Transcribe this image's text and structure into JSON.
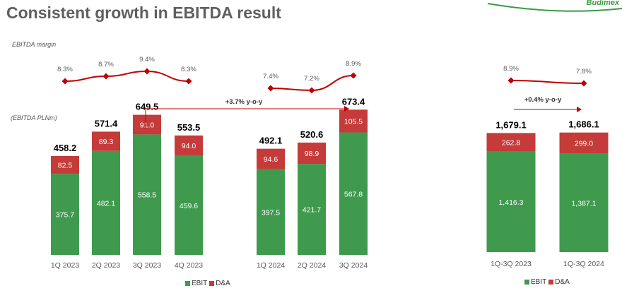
{
  "page": {
    "title": "Consistent growth in EBITDA result",
    "logo_text": "Budimex",
    "margin_label": "EBITDA margin",
    "value_label": "(EBITDA PLNm)"
  },
  "colors": {
    "ebit": "#3f9a4e",
    "da": "#c43b39",
    "margin_line": "#c00000",
    "arrow": "#c00000",
    "axis_text": "#595959"
  },
  "chart_data": [
    {
      "type": "bar",
      "stacked": true,
      "categories": [
        "1Q 2023",
        "2Q 2023",
        "3Q 2023",
        "4Q 2023",
        "1Q 2024",
        "2Q 2024",
        "3Q 2024"
      ],
      "series": [
        {
          "name": "EBIT",
          "values": [
            375.7,
            482.1,
            558.5,
            459.6,
            397.5,
            421.7,
            567.8
          ]
        },
        {
          "name": "D&A",
          "values": [
            82.5,
            89.3,
            91.0,
            94.0,
            94.6,
            98.9,
            105.5
          ]
        }
      ],
      "totals": [
        "458.2",
        "571.4",
        "649.5",
        "553.5",
        "492.1",
        "520.6",
        "673.4"
      ],
      "value_labels": {
        "EBIT": [
          "375.7",
          "482.1",
          "558.5",
          "459.6",
          "397.5",
          "421.7",
          "567.8"
        ],
        "D&A": [
          "82.5",
          "89.3",
          "91.0",
          "94.0",
          "94.6",
          "98.9",
          "105.5"
        ]
      },
      "margin": {
        "values": [
          8.3,
          8.7,
          9.4,
          8.3,
          7.4,
          7.2,
          8.9
        ],
        "labels": [
          "8.3%",
          "8.7%",
          "9.4%",
          "8.3%",
          "7.4%",
          "7.2%",
          "8.9%"
        ]
      },
      "annotation": "+3.7% y-o-y",
      "legend": [
        "EBIT",
        "D&A"
      ]
    },
    {
      "type": "bar",
      "stacked": true,
      "categories": [
        "1Q-3Q 2023",
        "1Q-3Q 2024"
      ],
      "series": [
        {
          "name": "EBIT",
          "values": [
            1416.3,
            1387.1
          ]
        },
        {
          "name": "D&A",
          "values": [
            262.8,
            299.0
          ]
        }
      ],
      "totals": [
        "1,679.1",
        "1,686.1"
      ],
      "value_labels": {
        "EBIT": [
          "1,416.3",
          "1,387.1"
        ],
        "D&A": [
          "262.8",
          "299.0"
        ]
      },
      "margin": {
        "values": [
          8.9,
          7.8
        ],
        "labels": [
          "8.9%",
          "7.8%"
        ]
      },
      "annotation": "+0.4% y-o-y",
      "legend": [
        "EBIT",
        "D&A"
      ]
    }
  ]
}
